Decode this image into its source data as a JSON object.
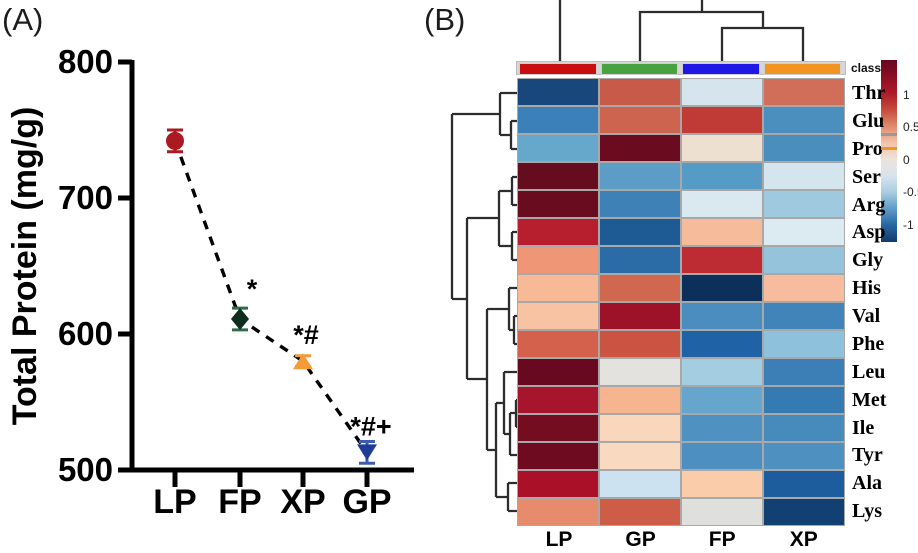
{
  "figure": {
    "panel_a_label": "(A)",
    "panel_b_label": "(B)"
  },
  "chart_data": [
    {
      "id": "total-protein-scatter",
      "type": "scatter",
      "title": "",
      "xlabel": "",
      "ylabel": "Total Protein (mg/g)",
      "categories": [
        "LP",
        "FP",
        "XP",
        "GP"
      ],
      "values": [
        742,
        611,
        580,
        513
      ],
      "errors": [
        8,
        8,
        4,
        8
      ],
      "sig_annotations": [
        "",
        "*",
        "*#",
        "*#+"
      ],
      "ylim": [
        500,
        800
      ],
      "yticks": [
        800,
        700,
        600,
        500
      ],
      "line_style": "dashed",
      "line_color": "#000000",
      "marker_shapes": [
        "circle",
        "diamond",
        "triangle-up",
        "triangle-down"
      ],
      "marker_colors": [
        "#ab1a20",
        "#0d2d20",
        "#f49b37",
        "#1e3c96"
      ],
      "error_colors": [
        "#ab1a20",
        "#2e6b4f",
        "#f49b37",
        "#3b5bb5"
      ]
    },
    {
      "id": "amino-acid-heatmap",
      "type": "heatmap",
      "columns": [
        "LP",
        "GP",
        "FP",
        "XP"
      ],
      "rows": [
        "Thr",
        "Glu",
        "Pro",
        "Ser",
        "Arg",
        "Asp",
        "Gly",
        "His",
        "Val",
        "Phe",
        "Leu",
        "Met",
        "Ile",
        "Tyr",
        "Ala",
        "Lys"
      ],
      "class_label": "class",
      "class_colors": [
        "#c80e0e",
        "#47a23f",
        "#2016e5",
        "#f29422"
      ],
      "values": [
        [
          -1.3,
          0.7,
          -0.15,
          0.55
        ],
        [
          -0.75,
          0.6,
          0.9,
          -0.65
        ],
        [
          -0.5,
          1.4,
          0.1,
          -0.7
        ],
        [
          1.45,
          -0.6,
          -0.65,
          -0.2
        ],
        [
          1.4,
          -0.75,
          -0.2,
          -0.45
        ],
        [
          1.05,
          -1.05,
          0.4,
          -0.2
        ],
        [
          0.5,
          -0.95,
          1.0,
          -0.45
        ],
        [
          0.4,
          0.6,
          -1.45,
          0.4
        ],
        [
          0.35,
          1.2,
          -0.65,
          -0.8
        ],
        [
          0.6,
          0.65,
          -1.0,
          -0.5
        ],
        [
          1.45,
          0.05,
          -0.4,
          -0.8
        ],
        [
          1.15,
          0.45,
          -0.55,
          -0.9
        ],
        [
          1.35,
          0.2,
          -0.6,
          -0.7
        ],
        [
          1.4,
          0.2,
          -0.65,
          -0.65
        ],
        [
          1.2,
          -0.35,
          0.35,
          -1.05
        ],
        [
          0.55,
          0.6,
          -0.05,
          -1.3
        ]
      ],
      "cell_colors": [
        [
          "#17477b",
          "#c85a49",
          "#d6e5ed",
          "#d06e59"
        ],
        [
          "#3b80b9",
          "#cc6450",
          "#c03b35",
          "#4b8fbf"
        ],
        [
          "#66a7cc",
          "#6b0b1f",
          "#eee0d1",
          "#4a8ebe"
        ],
        [
          "#650d1f",
          "#5b9dc7",
          "#569bc5",
          "#d5e5ee"
        ],
        [
          "#690c20",
          "#3d81b7",
          "#dae8f0",
          "#9fc9df"
        ],
        [
          "#b71f2e",
          "#1e5b95",
          "#f6bb9b",
          "#dceaf1"
        ],
        [
          "#ee9676",
          "#2b6ba6",
          "#bd2c32",
          "#95c3dc"
        ],
        [
          "#f7b996",
          "#d0674f",
          "#0c3059",
          "#f7bc9d"
        ],
        [
          "#f8c3a3",
          "#9d1228",
          "#4b8dbe",
          "#4084b9"
        ],
        [
          "#d3614c",
          "#cb5341",
          "#1f63a6",
          "#8dc1dc"
        ],
        [
          "#680920",
          "#e4e2de",
          "#a5cde1",
          "#3b7fb6"
        ],
        [
          "#a6152b",
          "#f6b58f",
          "#66a6cc",
          "#367ab2"
        ],
        [
          "#750d21",
          "#f9d7bd",
          "#4f91c1",
          "#478abc"
        ],
        [
          "#6e0b20",
          "#fad9c1",
          "#4c8fc0",
          "#4e90c0"
        ],
        [
          "#aa1028",
          "#cde2f0",
          "#facca9",
          "#1d5d9d"
        ],
        [
          "#e78b6d",
          "#ce5d48",
          "#dfe0dc",
          "#134073"
        ]
      ],
      "legend": {
        "ticks": [
          "1",
          "0.5",
          "0",
          "-0.5",
          "-1"
        ],
        "gradient_stops": [
          "#65081d",
          "#8c0e22",
          "#ad1a2a",
          "#c44c3c",
          "#e08a6d",
          "#f2c3a7",
          "#ece3dc",
          "#d7e4ee",
          "#a8cde1",
          "#5d9cc8",
          "#24659f",
          "#123a6b"
        ],
        "band_colors": [
          "#9a9a9a",
          "#f29422"
        ]
      },
      "legend_position": "right",
      "col_dendrogram": "((FP,XP),GP),LP",
      "row_dendrogram": "((Thr,(Glu,Pro)),(((Ser,Arg),(Asp,Gly)),((His,(Val,Phe)),((Leu,((Met,Ile),Tyr)),(Ala,Lys)))))"
    }
  ]
}
